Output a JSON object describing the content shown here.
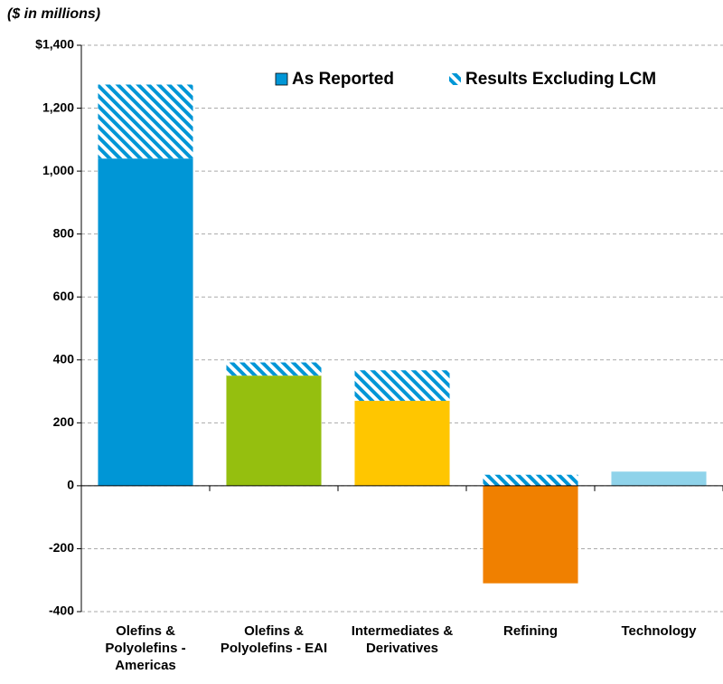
{
  "chart_data": {
    "type": "bar",
    "subtitle": "($ in millions)",
    "categories": [
      "Olefins & Polyolefins - Americas",
      "Olefins & Polyolefins - EAI",
      "Intermediates & Derivatives",
      "Refining",
      "Technology"
    ],
    "series": [
      {
        "name": "As Reported",
        "colors": [
          "#0096d6",
          "#95bf0f",
          "#ffc600",
          "#f08000",
          "#8fd3ea"
        ],
        "color": "#0096d6",
        "values": [
          1040,
          350,
          270,
          -310,
          45
        ]
      },
      {
        "name": "Results Excluding LCM",
        "color": "#0096d6",
        "hatch": true,
        "values": [
          1275,
          392,
          367,
          35,
          null
        ]
      }
    ],
    "ylim": [
      -400,
      1400
    ],
    "yticks": [
      -400,
      -200,
      0,
      200,
      400,
      600,
      800,
      {
        "value": 1000,
        "label": "1,000"
      },
      {
        "value": 1200,
        "label": "1,200"
      },
      {
        "value": 1400,
        "label": "$1,400"
      }
    ],
    "grid": true,
    "legend": "upper right"
  }
}
